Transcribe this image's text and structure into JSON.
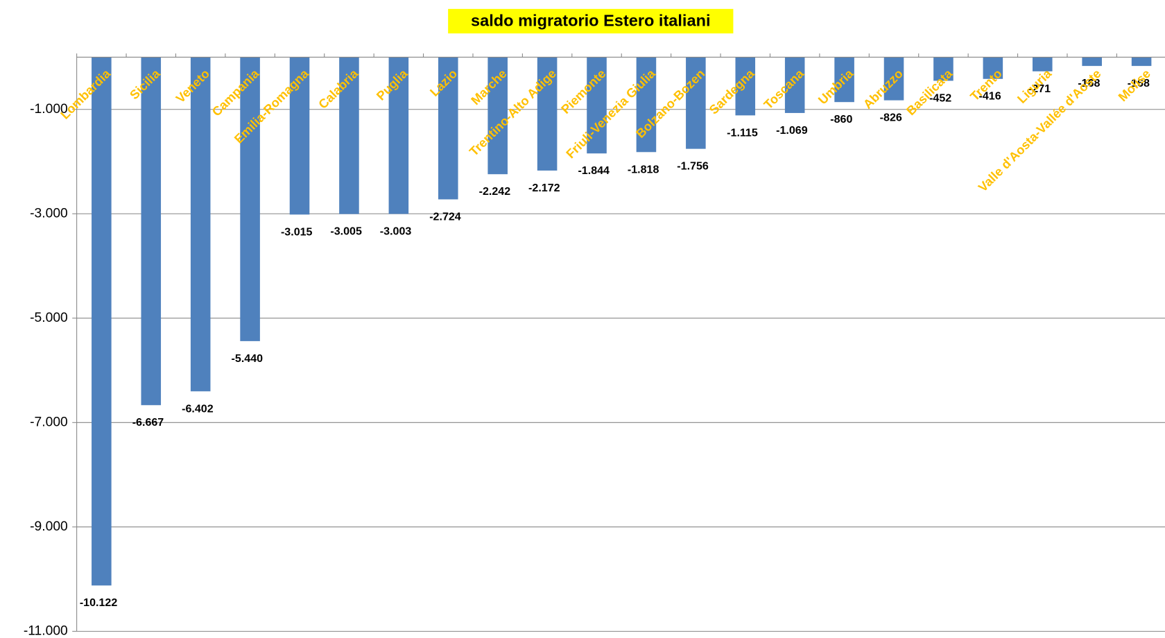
{
  "chart_data": {
    "type": "bar",
    "title": "saldo migratorio Estero italiani",
    "categories": [
      "Lombardia",
      "Sicilia",
      "Veneto",
      "Campania",
      "Emilia-Romagna",
      "Calabria",
      "Puglia",
      "Lazio",
      "Marche",
      "Trentino-Alto Adige",
      "Piemonte",
      "Friuli-Venezia Giulia",
      "Bolzano-Bozen",
      "Sardegna",
      "Toscana",
      "Umbria",
      "Abruzzo",
      "Basilicata",
      "Trento",
      "Liguria",
      "Valle d'Aosta-Vallée d'Aoste",
      "Molise"
    ],
    "values": [
      -10122,
      -6667,
      -6402,
      -5440,
      -3015,
      -3005,
      -3003,
      -2724,
      -2242,
      -2172,
      -1844,
      -1818,
      -1756,
      -1115,
      -1069,
      -860,
      -826,
      -452,
      -416,
      -271,
      -168,
      -168
    ],
    "value_labels": [
      "-10.122",
      "-6.667",
      "-6.402",
      "-5.440",
      "-3.015",
      "-3.005",
      "-3.003",
      "-2.724",
      "-2.242",
      "-2.172",
      "-1.844",
      "-1.818",
      "-1.756",
      "-1.115",
      "-1.069",
      "-860",
      "-826",
      "-452",
      "-416",
      "-271",
      "-168",
      "-168"
    ],
    "color": "#4f81bd",
    "category_label_color": "#ffc000",
    "title_background": "#ffff00",
    "ylim": [
      -11000,
      0
    ],
    "yticks": [
      {
        "value": -1000,
        "label": "-1.000"
      },
      {
        "value": -3000,
        "label": "-3.000"
      },
      {
        "value": -5000,
        "label": "-5.000"
      },
      {
        "value": -7000,
        "label": "-7.000"
      },
      {
        "value": -9000,
        "label": "-9.000"
      },
      {
        "value": -11000,
        "label": "-11.000"
      }
    ],
    "grid": true
  }
}
